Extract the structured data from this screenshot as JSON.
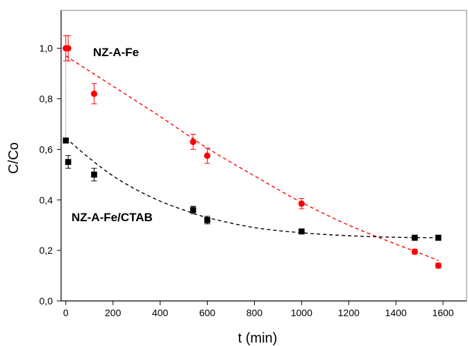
{
  "chart_data": {
    "type": "scatter",
    "xlabel": "t (min)",
    "ylabel": "C/Co",
    "xlim": [
      -20,
      1700
    ],
    "ylim": [
      0,
      1.15
    ],
    "xticks": [
      0,
      200,
      400,
      600,
      800,
      1000,
      1200,
      1400,
      1600
    ],
    "xtick_labels": [
      "0",
      "200",
      "400",
      "600",
      "800",
      "1000",
      "1200",
      "1400",
      "1600"
    ],
    "yticks": [
      0,
      0.2,
      0.4,
      0.6,
      0.8,
      1.0
    ],
    "ytick_labels": [
      "0,0",
      "0,2",
      "0,4",
      "0,6",
      "0,8",
      "1,0"
    ],
    "grid": false,
    "series": [
      {
        "name": "NZ-A-Fe",
        "color": "#ff0000",
        "marker": "circle",
        "points": [
          {
            "x": 0,
            "y": 1.0,
            "err": 0.05
          },
          {
            "x": 10,
            "y": 1.0,
            "err": 0.05
          },
          {
            "x": 120,
            "y": 0.82,
            "err": 0.04
          },
          {
            "x": 540,
            "y": 0.63,
            "err": 0.03
          },
          {
            "x": 600,
            "y": 0.575,
            "err": 0.03
          },
          {
            "x": 1000,
            "y": 0.385,
            "err": 0.02
          },
          {
            "x": 1480,
            "y": 0.195,
            "err": 0.01
          },
          {
            "x": 1580,
            "y": 0.14,
            "err": 0.01
          }
        ],
        "fit": [
          {
            "x": 0,
            "y": 0.97
          },
          {
            "x": 200,
            "y": 0.85
          },
          {
            "x": 400,
            "y": 0.73
          },
          {
            "x": 600,
            "y": 0.605
          },
          {
            "x": 800,
            "y": 0.495
          },
          {
            "x": 1000,
            "y": 0.39
          },
          {
            "x": 1200,
            "y": 0.3
          },
          {
            "x": 1400,
            "y": 0.225
          },
          {
            "x": 1500,
            "y": 0.19
          },
          {
            "x": 1580,
            "y": 0.16
          }
        ]
      },
      {
        "name": "NZ-A-Fe/CTAB",
        "color": "#000000",
        "marker": "square",
        "points": [
          {
            "x": 0,
            "y": 0.635,
            "err": 0.01
          },
          {
            "x": 10,
            "y": 0.55,
            "err": 0.025
          },
          {
            "x": 120,
            "y": 0.5,
            "err": 0.025
          },
          {
            "x": 540,
            "y": 0.36,
            "err": 0.015
          },
          {
            "x": 600,
            "y": 0.32,
            "err": 0.015
          },
          {
            "x": 1000,
            "y": 0.275,
            "err": 0.01
          },
          {
            "x": 1480,
            "y": 0.25,
            "err": 0.01
          },
          {
            "x": 1580,
            "y": 0.25,
            "err": 0.01
          }
        ],
        "fit": [
          {
            "x": 0,
            "y": 0.645
          },
          {
            "x": 100,
            "y": 0.565
          },
          {
            "x": 200,
            "y": 0.495
          },
          {
            "x": 300,
            "y": 0.44
          },
          {
            "x": 400,
            "y": 0.395
          },
          {
            "x": 500,
            "y": 0.36
          },
          {
            "x": 600,
            "y": 0.33
          },
          {
            "x": 800,
            "y": 0.29
          },
          {
            "x": 1000,
            "y": 0.27
          },
          {
            "x": 1200,
            "y": 0.258
          },
          {
            "x": 1400,
            "y": 0.252
          },
          {
            "x": 1580,
            "y": 0.25
          }
        ]
      }
    ]
  }
}
